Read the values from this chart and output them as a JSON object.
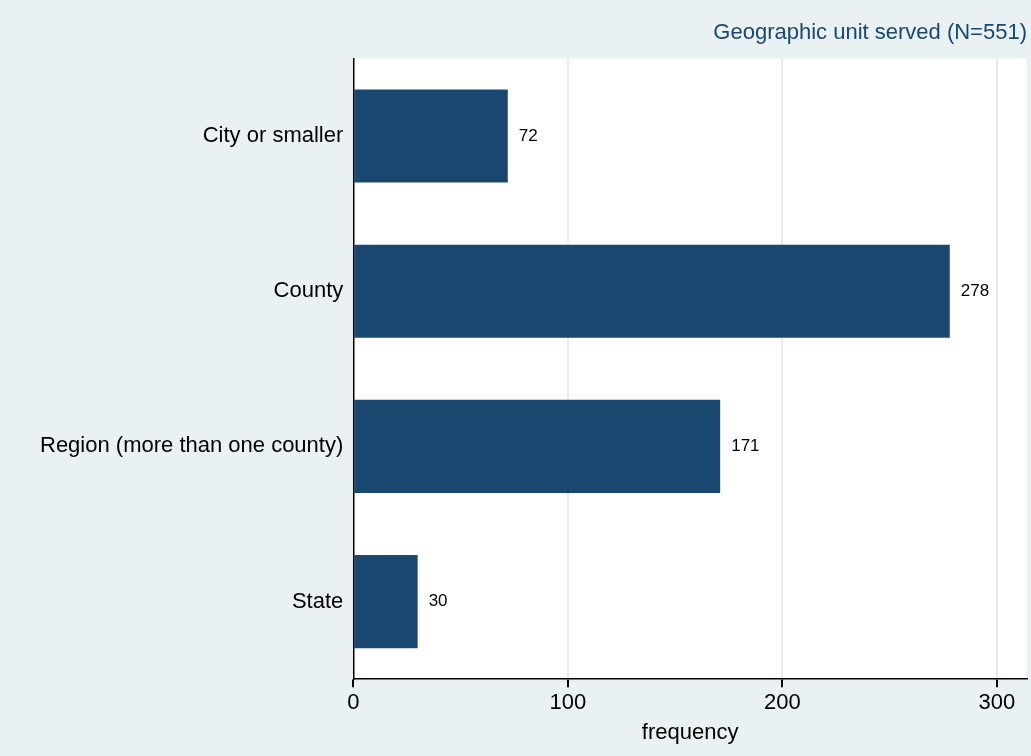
{
  "chart_data": {
    "type": "bar",
    "orientation": "horizontal",
    "title": "Geographic unit served (N=551)",
    "xlabel": "frequency",
    "categories": [
      "City or smaller",
      "County",
      "Region (more than one county)",
      "State"
    ],
    "values": [
      72,
      278,
      171,
      30
    ],
    "color": "#1a476f",
    "xlim": [
      0,
      314
    ],
    "xticks": [
      0,
      100,
      200,
      300
    ],
    "grid": "x",
    "data_labels": true,
    "legend": false
  }
}
